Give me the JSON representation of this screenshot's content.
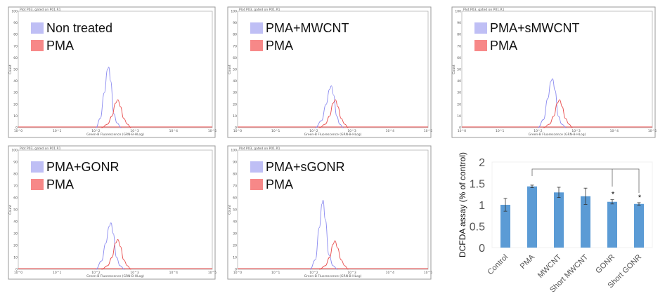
{
  "colors": {
    "treated": "#bfbff5",
    "treated_line": "#8a8af0",
    "pma": "#f78888",
    "pma_line": "#e84a4a",
    "bar": "#5b9bd5"
  },
  "chart_data": [
    {
      "type": "line",
      "title": "Plot P03, gated on P01.R1",
      "xlabel": "Green-B Fluorescence (GRN-B-HLog)",
      "ylabel": "Count",
      "xscale": "log",
      "xlim": [
        1,
        100000
      ],
      "ylim": [
        0,
        100
      ],
      "xticks": [
        "10^0",
        "10^1",
        "10^2",
        "10^3",
        "10^4",
        "10^5"
      ],
      "yticks": [
        "0",
        "10",
        "20",
        "30",
        "40",
        "50",
        "60",
        "70",
        "80",
        "90",
        "100"
      ],
      "legend": "top-left",
      "series": [
        {
          "name": "Non treated",
          "color": "#8a8af0",
          "points": [
            [
              100,
              0
            ],
            [
              130,
              8
            ],
            [
              165,
              30
            ],
            [
              200,
              50
            ],
            [
              215,
              52
            ],
            [
              240,
              40
            ],
            [
              290,
              12
            ],
            [
              350,
              4
            ],
            [
              450,
              0
            ]
          ]
        },
        {
          "name": "PMA",
          "color": "#e84a4a",
          "points": [
            [
              140,
              0
            ],
            [
              200,
              3
            ],
            [
              260,
              10
            ],
            [
              320,
              21
            ],
            [
              370,
              24
            ],
            [
              430,
              18
            ],
            [
              520,
              8
            ],
            [
              650,
              3
            ],
            [
              800,
              0
            ]
          ]
        }
      ]
    },
    {
      "type": "line",
      "title": "Plot P03, gated on P01.R1",
      "xlabel": "Green-B Fluorescence (GRN-B-HLog)",
      "ylabel": "Count",
      "xscale": "log",
      "xlim": [
        1,
        100000
      ],
      "ylim": [
        0,
        100
      ],
      "xticks": [
        "10^0",
        "10^1",
        "10^2",
        "10^3",
        "10^4",
        "10^5"
      ],
      "yticks": [
        "0",
        "10",
        "20",
        "30",
        "40",
        "50",
        "60",
        "70",
        "80",
        "90",
        "100"
      ],
      "legend": "top-left",
      "series": [
        {
          "name": "PMA+MWCNT",
          "color": "#8a8af0",
          "points": [
            [
              110,
              0
            ],
            [
              160,
              6
            ],
            [
              210,
              20
            ],
            [
              260,
              33
            ],
            [
              290,
              36
            ],
            [
              330,
              28
            ],
            [
              400,
              10
            ],
            [
              480,
              3
            ],
            [
              600,
              0
            ]
          ]
        },
        {
          "name": "PMA",
          "color": "#e84a4a",
          "points": [
            [
              140,
              0
            ],
            [
              200,
              3
            ],
            [
              260,
              10
            ],
            [
              320,
              21
            ],
            [
              370,
              24
            ],
            [
              430,
              18
            ],
            [
              520,
              8
            ],
            [
              650,
              3
            ],
            [
              800,
              0
            ]
          ]
        }
      ]
    },
    {
      "type": "line",
      "title": "Plot P03, gated on P01.R1",
      "xlabel": "Green-B Fluorescence (GRN-B-HLog)",
      "ylabel": "Count",
      "xscale": "log",
      "xlim": [
        1,
        100000
      ],
      "ylim": [
        0,
        100
      ],
      "xticks": [
        "10^0",
        "10^1",
        "10^2",
        "10^3",
        "10^4",
        "10^5"
      ],
      "yticks": [
        "0",
        "10",
        "20",
        "30",
        "40",
        "50",
        "60",
        "70",
        "80",
        "90",
        "100"
      ],
      "legend": "top-left",
      "series": [
        {
          "name": "PMA+sMWCNT",
          "color": "#8a8af0",
          "points": [
            [
              100,
              0
            ],
            [
              140,
              7
            ],
            [
              180,
              25
            ],
            [
              220,
              40
            ],
            [
              240,
              42
            ],
            [
              280,
              32
            ],
            [
              340,
              10
            ],
            [
              420,
              3
            ],
            [
              550,
              0
            ]
          ]
        },
        {
          "name": "PMA",
          "color": "#e84a4a",
          "points": [
            [
              140,
              0
            ],
            [
              200,
              3
            ],
            [
              260,
              10
            ],
            [
              320,
              21
            ],
            [
              370,
              24
            ],
            [
              430,
              18
            ],
            [
              520,
              8
            ],
            [
              650,
              3
            ],
            [
              800,
              0
            ]
          ]
        }
      ]
    },
    {
      "type": "line",
      "title": "Plot P03, gated on P01.R1",
      "xlabel": "Green-B Fluorescence (GRN-B-HLog)",
      "ylabel": "Count",
      "xscale": "log",
      "xlim": [
        1,
        100000
      ],
      "ylim": [
        0,
        100
      ],
      "xticks": [
        "10^0",
        "10^1",
        "10^2",
        "10^3",
        "10^4",
        "10^5"
      ],
      "yticks": [
        "0",
        "10",
        "20",
        "30",
        "40",
        "50",
        "60",
        "70",
        "80",
        "90",
        "100"
      ],
      "legend": "top-left",
      "series": [
        {
          "name": "PMA+GONR",
          "color": "#8a8af0",
          "points": [
            [
              100,
              0
            ],
            [
              140,
              7
            ],
            [
              180,
              22
            ],
            [
              220,
              36
            ],
            [
              245,
              39
            ],
            [
              280,
              30
            ],
            [
              340,
              10
            ],
            [
              420,
              3
            ],
            [
              550,
              0
            ]
          ]
        },
        {
          "name": "PMA",
          "color": "#e84a4a",
          "points": [
            [
              140,
              0
            ],
            [
              200,
              3
            ],
            [
              260,
              10
            ],
            [
              320,
              22
            ],
            [
              370,
              25
            ],
            [
              430,
              19
            ],
            [
              520,
              8
            ],
            [
              650,
              3
            ],
            [
              800,
              0
            ]
          ]
        }
      ]
    },
    {
      "type": "line",
      "title": "Plot P03, gated on P01.R1",
      "xlabel": "Green-B Fluorescence (GRN-B-HLog)",
      "ylabel": "Count",
      "xscale": "log",
      "xlim": [
        1,
        100000
      ],
      "ylim": [
        0,
        100
      ],
      "xticks": [
        "10^0",
        "10^1",
        "10^2",
        "10^3",
        "10^4",
        "10^5"
      ],
      "yticks": [
        "0",
        "10",
        "20",
        "30",
        "40",
        "50",
        "60",
        "70",
        "80",
        "90",
        "100"
      ],
      "legend": "top-left",
      "series": [
        {
          "name": "PMA+sGONR",
          "color": "#8a8af0",
          "points": [
            [
              80,
              0
            ],
            [
              110,
              8
            ],
            [
              140,
              35
            ],
            [
              165,
              55
            ],
            [
              175,
              58
            ],
            [
              200,
              42
            ],
            [
              250,
              12
            ],
            [
              320,
              3
            ],
            [
              420,
              0
            ]
          ]
        },
        {
          "name": "PMA",
          "color": "#e84a4a",
          "points": [
            [
              140,
              0
            ],
            [
              200,
              3
            ],
            [
              260,
              10
            ],
            [
              320,
              21
            ],
            [
              360,
              24
            ],
            [
              420,
              18
            ],
            [
              520,
              8
            ],
            [
              650,
              3
            ],
            [
              800,
              0
            ]
          ]
        }
      ]
    },
    {
      "type": "bar",
      "ylabel": "DCFDA assay (% of control)",
      "ylim": [
        0,
        2
      ],
      "yticks": [
        "0",
        "0.5",
        "1",
        "1.5",
        "2"
      ],
      "grid": false,
      "categories": [
        "Control",
        "PMA",
        "MWCNT",
        "Short MWCNT",
        "GONR",
        "Short GONR"
      ],
      "values": [
        1.0,
        1.43,
        1.29,
        1.2,
        1.07,
        1.02
      ],
      "errors": [
        0.15,
        0.03,
        0.12,
        0.19,
        0.05,
        0.03
      ],
      "annotations": [
        {
          "type": "bracket",
          "from": "PMA",
          "to": [
            "GONR",
            "Short GONR"
          ]
        },
        {
          "text": "*",
          "at": "GONR"
        },
        {
          "text": "*",
          "at": "Short GONR"
        }
      ]
    }
  ]
}
